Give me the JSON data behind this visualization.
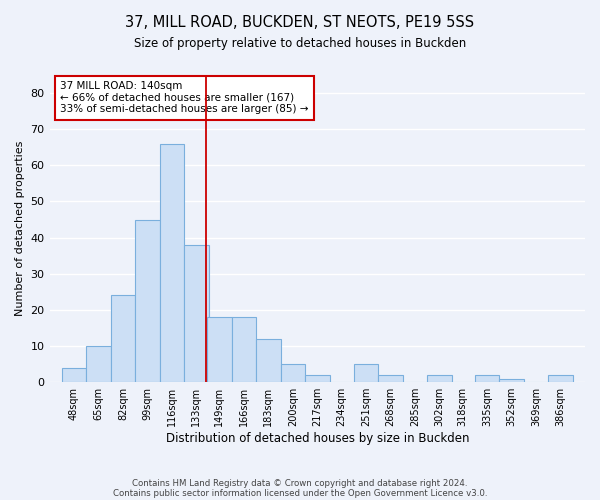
{
  "title": "37, MILL ROAD, BUCKDEN, ST NEOTS, PE19 5SS",
  "subtitle": "Size of property relative to detached houses in Buckden",
  "xlabel": "Distribution of detached houses by size in Buckden",
  "ylabel": "Number of detached properties",
  "bar_heights": [
    4,
    10,
    24,
    45,
    66,
    38,
    18,
    18,
    12,
    5,
    2,
    0,
    5,
    2,
    0,
    2,
    0,
    2,
    1,
    0,
    2
  ],
  "bin_width": 17,
  "bar_color": "#ccdff5",
  "bar_edgecolor": "#7aafdd",
  "vline_x": 140,
  "vline_color": "#cc0000",
  "annotation_text": "37 MILL ROAD: 140sqm\n← 66% of detached houses are smaller (167)\n33% of semi-detached houses are larger (85) →",
  "annotation_box_color": "#ffffff",
  "annotation_box_edgecolor": "#cc0000",
  "tick_labels": [
    "48sqm",
    "65sqm",
    "82sqm",
    "99sqm",
    "116sqm",
    "133sqm",
    "149sqm",
    "166sqm",
    "183sqm",
    "200sqm",
    "217sqm",
    "234sqm",
    "251sqm",
    "268sqm",
    "285sqm",
    "302sqm",
    "318sqm",
    "335sqm",
    "352sqm",
    "369sqm",
    "386sqm"
  ],
  "tick_positions": [
    48,
    65,
    82,
    99,
    116,
    133,
    149,
    166,
    183,
    200,
    217,
    234,
    251,
    268,
    285,
    302,
    318,
    335,
    352,
    369,
    386
  ],
  "ylim": [
    0,
    85
  ],
  "xlim": [
    31,
    403
  ],
  "yticks": [
    0,
    10,
    20,
    30,
    40,
    50,
    60,
    70,
    80
  ],
  "background_color": "#eef2fa",
  "footer_line1": "Contains HM Land Registry data © Crown copyright and database right 2024.",
  "footer_line2": "Contains public sector information licensed under the Open Government Licence v3.0."
}
